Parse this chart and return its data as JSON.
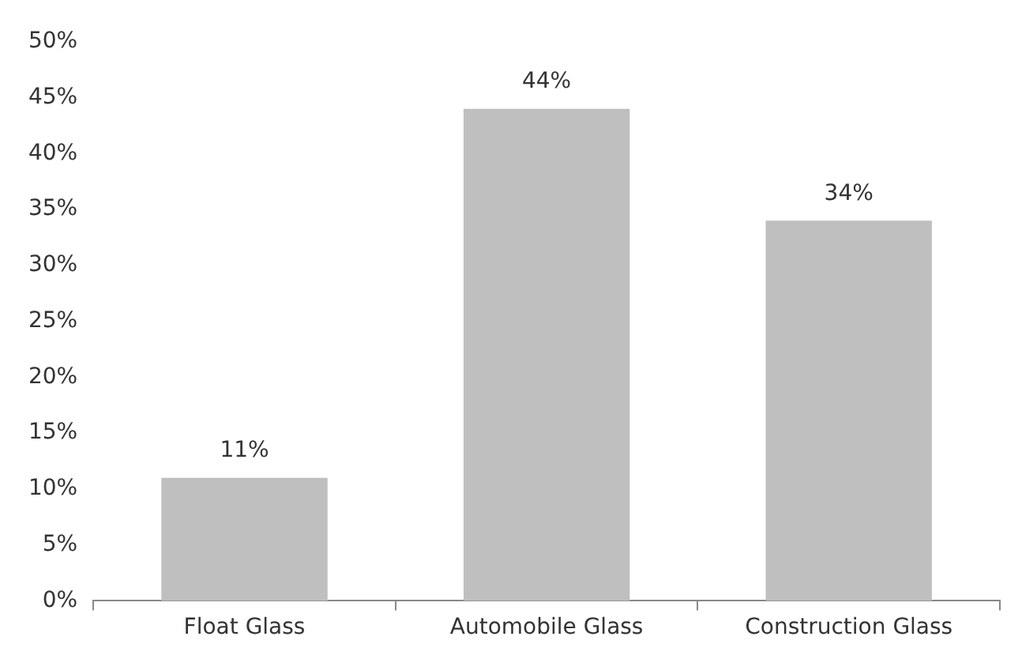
{
  "chart_data": {
    "type": "bar",
    "categories": [
      "Float Glass",
      "Automobile Glass",
      "Construction Glass"
    ],
    "values": [
      11,
      44,
      34
    ],
    "value_labels": [
      "11%",
      "44%",
      "34%"
    ],
    "color": "#bfbfbf",
    "ylim": [
      0,
      50
    ],
    "yticks": [
      {
        "value": 0,
        "label": "0%"
      },
      {
        "value": 5,
        "label": "5%"
      },
      {
        "value": 10,
        "label": "10%"
      },
      {
        "value": 15,
        "label": "15%"
      },
      {
        "value": 20,
        "label": "20%"
      },
      {
        "value": 25,
        "label": "25%"
      },
      {
        "value": 30,
        "label": "30%"
      },
      {
        "value": 35,
        "label": "35%"
      },
      {
        "value": 40,
        "label": "40%"
      },
      {
        "value": 45,
        "label": "45%"
      },
      {
        "value": 50,
        "label": "50%"
      }
    ],
    "grid": false,
    "legend": false
  }
}
